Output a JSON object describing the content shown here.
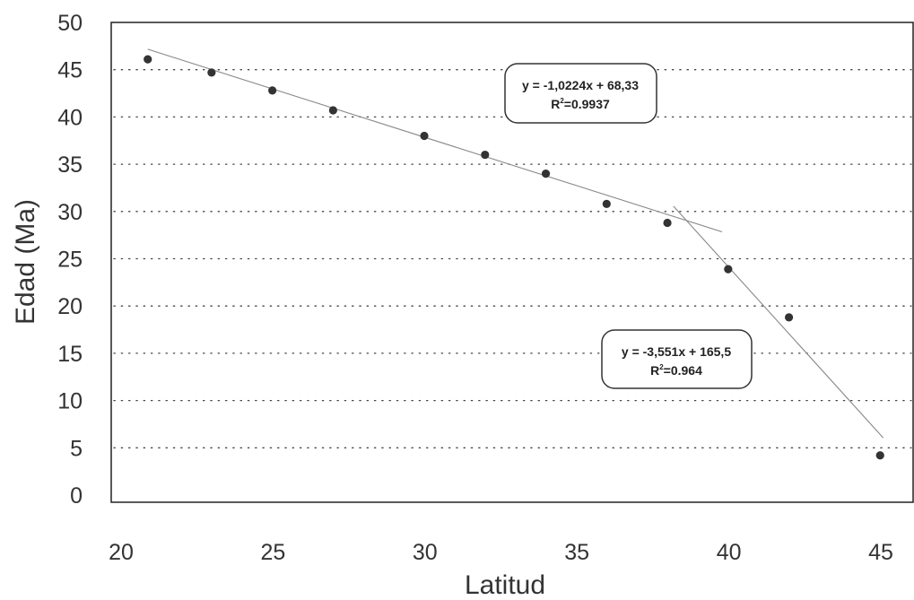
{
  "chart_data": {
    "type": "scatter",
    "xlabel": "Latitud",
    "ylabel": "Edad (Ma)",
    "xlim": [
      20,
      45
    ],
    "ylim": [
      0,
      50
    ],
    "x_ticks": [
      "20",
      "25",
      "30",
      "35",
      "40",
      "45"
    ],
    "y_ticks": [
      "0",
      "5",
      "10",
      "15",
      "20",
      "25",
      "30",
      "35",
      "40",
      "45",
      "50"
    ],
    "grid": "horizontal-dotted",
    "points": [
      {
        "x": 20.7,
        "y": 46.1
      },
      {
        "x": 22.8,
        "y": 44.7
      },
      {
        "x": 24.8,
        "y": 42.8
      },
      {
        "x": 26.8,
        "y": 40.7
      },
      {
        "x": 29.8,
        "y": 38.0
      },
      {
        "x": 31.8,
        "y": 36.0
      },
      {
        "x": 33.8,
        "y": 34.0
      },
      {
        "x": 35.8,
        "y": 30.8
      },
      {
        "x": 37.8,
        "y": 28.8
      },
      {
        "x": 39.8,
        "y": 23.9
      },
      {
        "x": 41.8,
        "y": 18.8
      },
      {
        "x": 44.8,
        "y": 4.2
      }
    ],
    "trendlines": [
      {
        "slope": -1.0224,
        "intercept": 68.33,
        "x_from": 20.7,
        "x_to": 39.6,
        "equation": "y = -1,0224x + 68,33",
        "r2_prefix": "R",
        "r2_sup": "2",
        "r2_value": "=0.9937"
      },
      {
        "slope": -3.551,
        "intercept": 165.5,
        "x_from": 38.0,
        "x_to": 44.9,
        "equation": "y = -3,551x + 165,5",
        "r2_prefix": "R",
        "r2_sup": "2",
        "r2_value": "=0.964"
      }
    ],
    "colors": {
      "points": "#333333",
      "trendline": "#888888",
      "grid": "#444444",
      "axis": "#222222"
    }
  }
}
